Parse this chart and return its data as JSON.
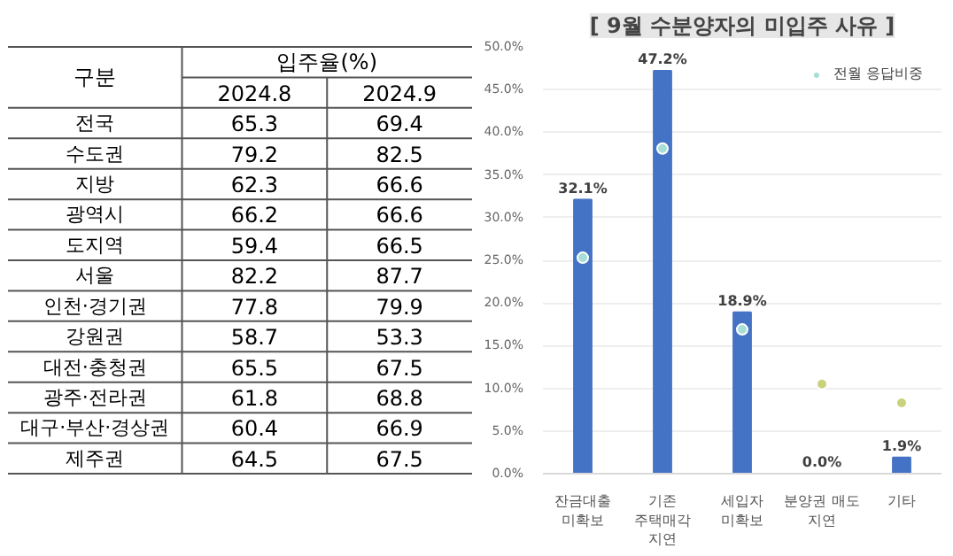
{
  "chart_data": [
    {
      "type": "heatmap",
      "title": "구분",
      "xlabel": "입주율(%)",
      "color": "#ffffff",
      "categories": [
        "2024.8",
        "2024.9"
      ],
      "y_categories": [
        "전국",
        "수도권",
        "지방",
        "광역시",
        "도지역",
        "서울",
        "인천·경기권",
        "강원권",
        "대전·충청권",
        "광주·전라권",
        "대구·부산·경상권",
        "제주권"
      ],
      "cells": [
        [
          65.3,
          69.4
        ],
        [
          79.2,
          82.5
        ],
        [
          62.3,
          66.6
        ],
        [
          66.2,
          66.6
        ],
        [
          59.4,
          66.5
        ],
        [
          82.2,
          87.7
        ],
        [
          77.8,
          79.9
        ],
        [
          58.7,
          53.3
        ],
        [
          65.5,
          67.5
        ],
        [
          61.8,
          68.8
        ],
        [
          60.4,
          66.9
        ],
        [
          64.5,
          67.5
        ]
      ],
      "data_labels": true
    },
    {
      "type": "bar",
      "title": "[ 9월 수분양자의 미입주 사유 ]",
      "categories": [
        "잔금대출\n미확보",
        "기존\n주택매각\n지연",
        "세입자\n미확보",
        "분양권 매도\n지연",
        "기타"
      ],
      "series": [
        {
          "color": "#4472c4",
          "values": [
            32.1,
            47.2,
            18.9,
            0.0,
            1.9
          ],
          "value_labels": [
            "32.1%",
            "47.2%",
            "18.9%",
            "0.0%",
            "1.9%"
          ]
        },
        {
          "type": "scatter",
          "name": "전월 응답비중",
          "colors": [
            "#a8ded6",
            "#a8ded6",
            "#a8ded6",
            "#c9d27a",
            "#c9d27a"
          ],
          "values": [
            25.3,
            38.1,
            16.9,
            10.5,
            8.3
          ]
        }
      ],
      "ylim": [
        0,
        50
      ],
      "yticks": [
        {
          "value": 0,
          "label": "0.0%"
        },
        {
          "value": 5,
          "label": "5.0%"
        },
        {
          "value": 10,
          "label": "10.0%"
        },
        {
          "value": 15,
          "label": "15.0%"
        },
        {
          "value": 20,
          "label": "20.0%"
        },
        {
          "value": 25,
          "label": "25.0%"
        },
        {
          "value": 30,
          "label": "30.0%"
        },
        {
          "value": 35,
          "label": "35.0%"
        },
        {
          "value": 40,
          "label": "40.0%"
        },
        {
          "value": 45,
          "label": "45.0%"
        },
        {
          "value": 50,
          "label": "50.0%"
        }
      ],
      "grid": "y",
      "legend": "top right"
    }
  ]
}
